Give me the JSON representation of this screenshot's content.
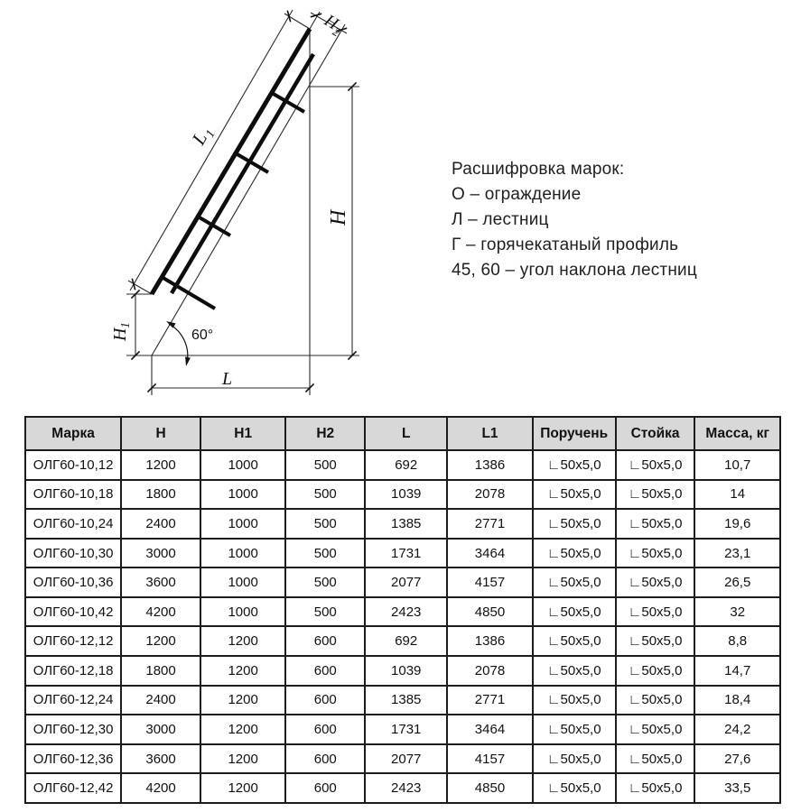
{
  "diagram": {
    "angle_label": "60°",
    "labels": {
      "L1_main": "L",
      "L1_sub": "1",
      "H2_main": "H",
      "H2_sub": "2",
      "H_main": "H",
      "H1_main": "H",
      "H1_sub": "1",
      "L_main": "L"
    }
  },
  "legend": {
    "title": "Расшифровка марок:",
    "items": [
      "О – ограждение",
      "Л – лестниц",
      "Г – горячекатаный профиль",
      "45, 60 – угол наклона лестниц"
    ]
  },
  "table": {
    "headers": [
      "Марка",
      "Н",
      "Н1",
      "Н2",
      "L",
      "L1",
      "Поручень",
      "Стойка",
      "Масса, кг"
    ],
    "rows": [
      [
        "ОЛГ60-10,12",
        "1200",
        "1000",
        "500",
        "692",
        "1386",
        "∟50х5,0",
        "∟50х5,0",
        "10,7"
      ],
      [
        "ОЛГ60-10,18",
        "1800",
        "1000",
        "500",
        "1039",
        "2078",
        "∟50х5,0",
        "∟50х5,0",
        "14"
      ],
      [
        "ОЛГ60-10,24",
        "2400",
        "1000",
        "500",
        "1385",
        "2771",
        "∟50х5,0",
        "∟50х5,0",
        "19,6"
      ],
      [
        "ОЛГ60-10,30",
        "3000",
        "1000",
        "500",
        "1731",
        "3464",
        "∟50х5,0",
        "∟50х5,0",
        "23,1"
      ],
      [
        "ОЛГ60-10,36",
        "3600",
        "1000",
        "500",
        "2077",
        "4157",
        "∟50х5,0",
        "∟50х5,0",
        "26,5"
      ],
      [
        "ОЛГ60-10,42",
        "4200",
        "1000",
        "500",
        "2423",
        "4850",
        "∟50х5,0",
        "∟50х5,0",
        "32"
      ],
      [
        "ОЛГ60-12,12",
        "1200",
        "1200",
        "600",
        "692",
        "1386",
        "∟50х5,0",
        "∟50х5,0",
        "8,8"
      ],
      [
        "ОЛГ60-12,18",
        "1800",
        "1200",
        "600",
        "1039",
        "2078",
        "∟50х5,0",
        "∟50х5,0",
        "14,7"
      ],
      [
        "ОЛГ60-12,24",
        "2400",
        "1200",
        "600",
        "1385",
        "2771",
        "∟50х5,0",
        "∟50х5,0",
        "18,4"
      ],
      [
        "ОЛГ60-12,30",
        "3000",
        "1200",
        "600",
        "1731",
        "3464",
        "∟50х5,0",
        "∟50х5,0",
        "24,2"
      ],
      [
        "ОЛГ60-12,36",
        "3600",
        "1200",
        "600",
        "2077",
        "4157",
        "∟50х5,0",
        "∟50х5,0",
        "27,6"
      ],
      [
        "ОЛГ60-12,42",
        "4200",
        "1200",
        "600",
        "2423",
        "4850",
        "∟50х5,0",
        "∟50х5,0",
        "33,5"
      ]
    ]
  },
  "colors": {
    "table_header_bg": "#d8d8d8",
    "line": "#1a1a1a",
    "text": "#111111"
  }
}
